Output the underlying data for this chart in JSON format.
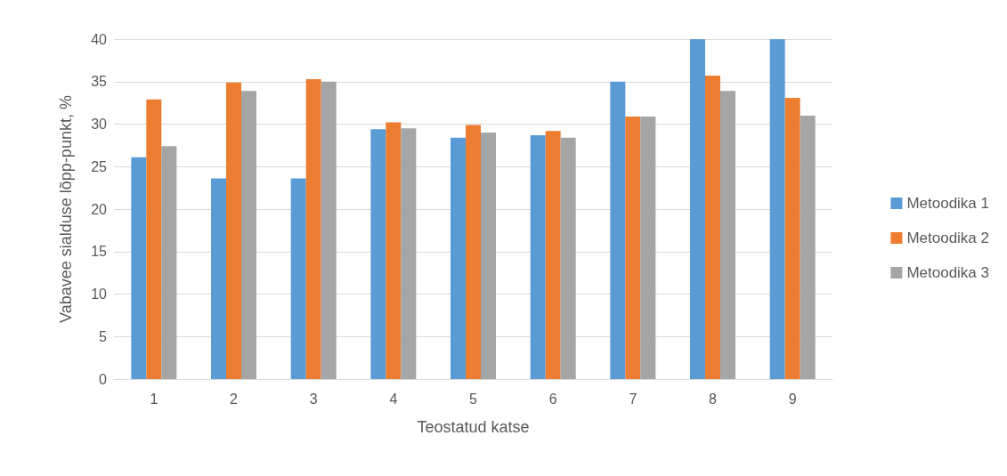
{
  "chart_data": {
    "type": "bar",
    "xlabel": "Teostatud katse",
    "ylabel": "Vabavee sialduse lõpp-punkt, %",
    "categories": [
      "1",
      "2",
      "3",
      "4",
      "5",
      "6",
      "7",
      "8",
      "9"
    ],
    "series": [
      {
        "name": "Metoodika 1",
        "color": "#5b9bd5",
        "values": [
          26.1,
          23.6,
          23.6,
          29.4,
          28.4,
          28.7,
          35.0,
          40,
          40
        ]
      },
      {
        "name": "Metoodika 2",
        "color": "#ed7d31",
        "values": [
          32.9,
          34.9,
          35.3,
          30.2,
          29.9,
          29.2,
          30.9,
          35.7,
          33.1
        ]
      },
      {
        "name": "Metoodika 3",
        "color": "#a5a5a5",
        "values": [
          27.4,
          33.9,
          35.0,
          29.5,
          29.0,
          28.4,
          30.9,
          33.9,
          31.0
        ]
      }
    ],
    "ylim": [
      0,
      40
    ],
    "yticks": [
      0,
      5,
      10,
      15,
      20,
      25,
      30,
      35,
      40
    ],
    "grid": "y",
    "legend": "right"
  }
}
